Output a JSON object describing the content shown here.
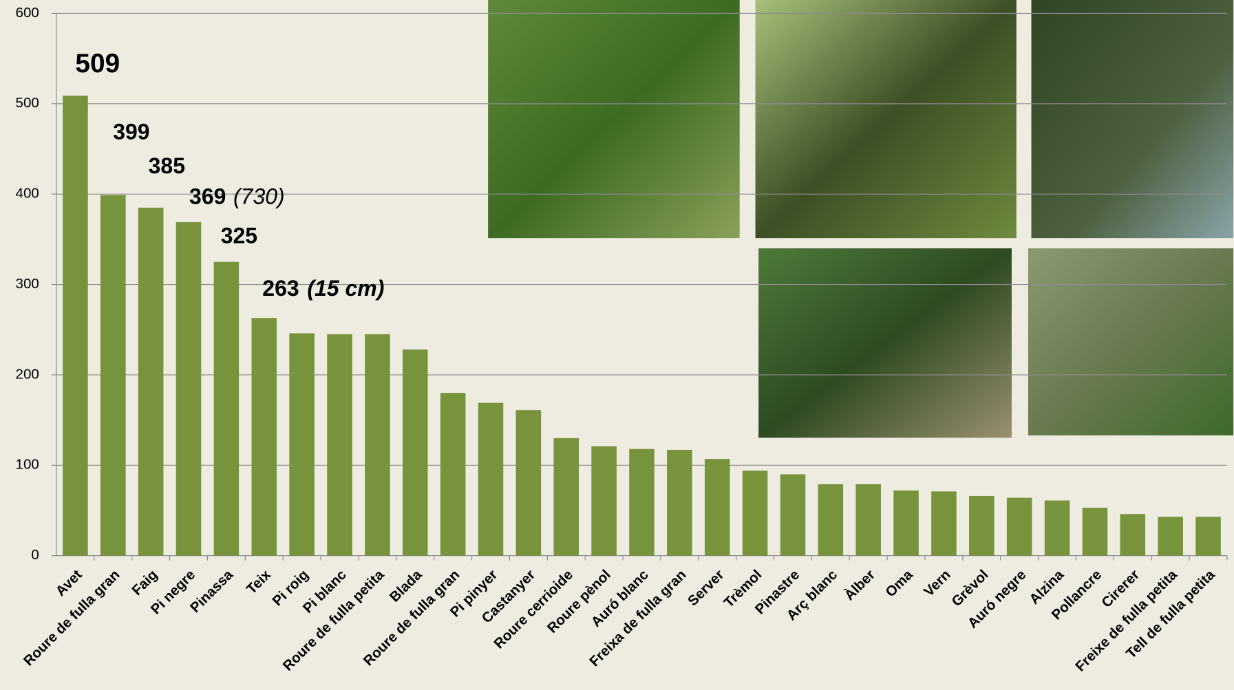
{
  "chart_data": {
    "type": "bar",
    "categories": [
      "Avet",
      "Roure de fulla gran",
      "Faig",
      "Pi negre",
      "Pinassa",
      "Teix",
      "Pi roig",
      "Pi blanc",
      "Roure de fulla petita",
      "Blada",
      "Roure de fulla gran",
      "Pi pinyer",
      "Castanyer",
      "Roure cerrioide",
      "Roure pènol",
      "Auró blanc",
      "Freixa de fulla gran",
      "Server",
      "Trèmol",
      "Pinastre",
      "Arç blanc",
      "Àlber",
      "Oma",
      "Vern",
      "Grèvol",
      "Auró negre",
      "Alzina",
      "Pollancre",
      "Cirerer",
      "Freixe de fulla petita",
      "Tell de fulla petita"
    ],
    "values": [
      509,
      399,
      385,
      369,
      325,
      263,
      246,
      245,
      245,
      228,
      180,
      169,
      161,
      130,
      121,
      118,
      117,
      107,
      94,
      90,
      79,
      79,
      72,
      71,
      66,
      64,
      61,
      53,
      46,
      43,
      43
    ],
    "color": "#77933c",
    "ylim": [
      0,
      600
    ],
    "yticks": [
      0,
      100,
      200,
      300,
      400,
      500,
      600
    ],
    "grid": true,
    "annotations": [
      "(730)",
      "(15 cm)"
    ]
  }
}
